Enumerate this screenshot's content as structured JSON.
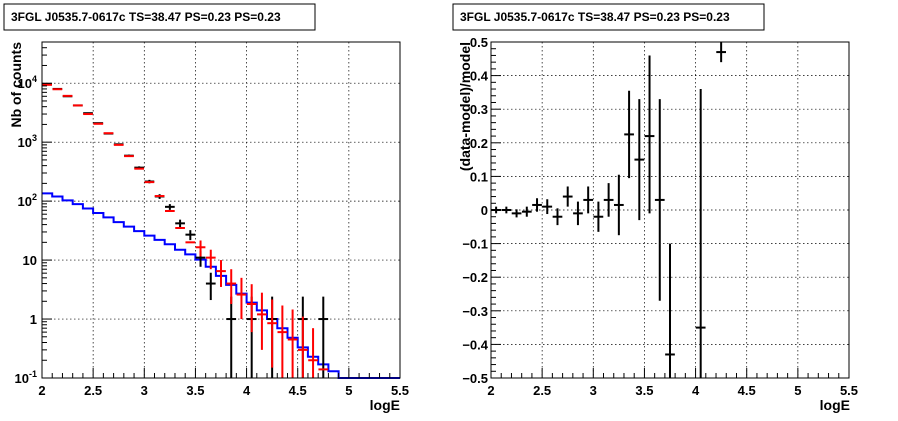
{
  "chart_data": [
    {
      "type": "line",
      "title": "3FGL J0535.7-0617c TS=38.47 PS=0.23 PS=0.23",
      "xlabel": "logE",
      "ylabel": "Nb of counts",
      "xlim": [
        2,
        5.5
      ],
      "ylim": [
        0.1,
        50000
      ],
      "yscale": "log",
      "grid": true,
      "x_ticks": [
        "2",
        "2.5",
        "3",
        "3.5",
        "4",
        "4.5",
        "5",
        "5.5"
      ],
      "y_ticks": [
        {
          "value": 0.1,
          "label": "10",
          "exp": "-1"
        },
        {
          "value": 1,
          "label": "1",
          "exp": ""
        },
        {
          "value": 10,
          "label": "10",
          "exp": ""
        },
        {
          "value": 100,
          "label": "10",
          "exp": "2"
        },
        {
          "value": 1000,
          "label": "10",
          "exp": "3"
        },
        {
          "value": 10000,
          "label": "10",
          "exp": "4"
        }
      ],
      "bin_edges": [
        2,
        2.1,
        2.2,
        2.3,
        2.4,
        2.5,
        2.6,
        2.7,
        2.8,
        2.9,
        3.0,
        3.1,
        3.2,
        3.3,
        3.4,
        3.5,
        3.6,
        3.7,
        3.8,
        3.9,
        4.0,
        4.1,
        4.2,
        4.3,
        4.4,
        4.5,
        4.6,
        4.7,
        4.8,
        4.9,
        5.0,
        5.1,
        5.2,
        5.3,
        5.4,
        5.5
      ],
      "series": [
        {
          "name": "",
          "kind": "step",
          "color": "#0000ff",
          "values": [
            135,
            120,
            103,
            89,
            75,
            63,
            53,
            44,
            37,
            31,
            26,
            22,
            18.5,
            15,
            12.5,
            10.2,
            7.7,
            5.4,
            3.8,
            2.7,
            1.9,
            1.4,
            1.0,
            0.7,
            0.48,
            0.33,
            0.23,
            0.17,
            0.13,
            0.1,
            0.1,
            0.1,
            0.1,
            0.1,
            0.1
          ]
        },
        {
          "name": "",
          "kind": "points",
          "color": "#000000",
          "x": [
            2.05,
            2.15,
            2.25,
            2.35,
            2.45,
            2.55,
            2.65,
            2.75,
            2.85,
            2.95,
            3.05,
            3.15,
            3.25,
            3.35,
            3.45,
            3.55,
            3.65,
            3.85,
            4.05,
            4.25,
            4.55,
            4.75
          ],
          "y": [
            9500,
            8000,
            6000,
            4200,
            3100,
            2100,
            1400,
            920,
            590,
            370,
            215,
            120,
            80,
            42,
            27,
            11,
            4,
            1,
            1,
            1,
            1,
            1
          ],
          "err_low": [
            100,
            90,
            80,
            65,
            55,
            46,
            37,
            30,
            24,
            19,
            14.5,
            11,
            9,
            6.5,
            5.2,
            3.3,
            1.9,
            0.9,
            0.9,
            0.9,
            0.9,
            0.9
          ],
          "err_high": [
            100,
            90,
            80,
            65,
            55,
            46,
            37,
            30,
            24,
            19,
            14.5,
            11,
            9,
            6.5,
            5.2,
            3.3,
            2.1,
            1.4,
            1.4,
            1.4,
            1.4,
            1.4
          ]
        },
        {
          "name": "",
          "kind": "points",
          "color": "#ff0000",
          "x": [
            2.05,
            2.15,
            2.25,
            2.35,
            2.45,
            2.55,
            2.65,
            2.75,
            2.85,
            2.95,
            3.05,
            3.15,
            3.25,
            3.35,
            3.45,
            3.55,
            3.65,
            3.75,
            3.85,
            3.95,
            4.05,
            4.15,
            4.25,
            4.35,
            4.45,
            4.55,
            4.65,
            4.75
          ],
          "y": [
            9400,
            7900,
            6100,
            4200,
            3000,
            2050,
            1420,
            900,
            580,
            355,
            210,
            122,
            68,
            35,
            20,
            16.5,
            11,
            6.5,
            4,
            2.6,
            1.8,
            1.2,
            0.85,
            0.6,
            0.45,
            0.3,
            0.2,
            0.14
          ],
          "err_low": [
            0,
            0,
            0,
            0,
            0,
            0,
            0,
            0,
            0,
            0,
            0,
            0,
            0,
            0,
            0,
            5,
            4,
            3,
            2.2,
            1.6,
            1.2,
            0.9,
            0.7,
            0.52,
            0.4,
            0.27,
            0.18,
            0
          ],
          "err_high": [
            0,
            0,
            0,
            0,
            0,
            0,
            0,
            0,
            0,
            0,
            0,
            0,
            0,
            0,
            0,
            5,
            4,
            3.5,
            3,
            2.4,
            2.1,
            1.6,
            1.3,
            1.1,
            1.0,
            0.8,
            0.5,
            0
          ]
        }
      ]
    },
    {
      "type": "scatter",
      "title": "3FGL J0535.7-0617c TS=38.47 PS=0.23 PS=0.23",
      "xlabel": "logE",
      "ylabel": "(data-model)/model",
      "xlim": [
        2,
        5.5
      ],
      "ylim": [
        -0.5,
        0.5
      ],
      "grid": true,
      "x_ticks": [
        "2",
        "2.5",
        "3",
        "3.5",
        "4",
        "4.5",
        "5",
        "5.5"
      ],
      "y_ticks": [
        "−0.5",
        "−0.4",
        "−0.3",
        "−0.2",
        "−0.1",
        "0",
        "0.1",
        "0.2",
        "0.3",
        "0.4",
        "0.5"
      ],
      "series": [
        {
          "name": "",
          "color": "#000000",
          "x": [
            2.05,
            2.15,
            2.25,
            2.35,
            2.45,
            2.55,
            2.65,
            2.75,
            2.85,
            2.95,
            3.05,
            3.15,
            3.25,
            3.35,
            3.45,
            3.55,
            3.65,
            3.75,
            4.05,
            4.25
          ],
          "y": [
            0.0,
            0.0,
            -0.01,
            -0.005,
            0.015,
            0.01,
            -0.02,
            0.04,
            -0.01,
            0.03,
            -0.02,
            0.03,
            0.015,
            0.225,
            0.15,
            0.22,
            0.03,
            -0.43,
            -0.35,
            0.47
          ],
          "err_low": [
            0.01,
            0.01,
            0.012,
            0.015,
            0.02,
            0.022,
            0.025,
            0.03,
            0.035,
            0.04,
            0.045,
            0.05,
            0.09,
            0.13,
            0.18,
            0.23,
            0.3,
            0.07,
            0.15,
            0.03
          ],
          "err_high": [
            0.01,
            0.01,
            0.012,
            0.015,
            0.02,
            0.022,
            0.025,
            0.03,
            0.035,
            0.04,
            0.045,
            0.05,
            0.09,
            0.13,
            0.18,
            0.24,
            0.3,
            0.33,
            0.71,
            0.03
          ]
        }
      ]
    }
  ]
}
